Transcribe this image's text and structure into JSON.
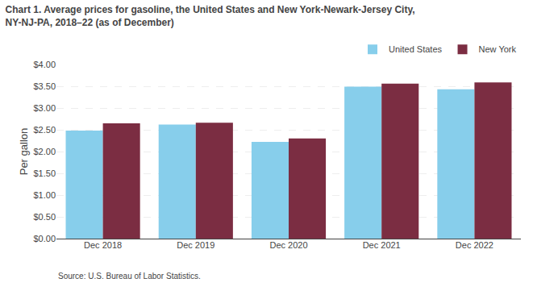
{
  "chart_data": {
    "type": "bar",
    "title": "Chart 1. Average prices for gasoline, the United States and New York-Newark-Jersey City,\nNY-NJ-PA, 2018–22 (as of December)",
    "ylabel": "Per gallon",
    "source": "Source: U.S. Bureau of Labor Statistics.",
    "categories": [
      "Dec 2018",
      "Dec 2019",
      "Dec 2020",
      "Dec 2021",
      "Dec 2022"
    ],
    "series": [
      {
        "name": "United States",
        "color": "#87CEEB",
        "values": [
          2.48,
          2.62,
          2.22,
          3.49,
          3.43
        ]
      },
      {
        "name": "New York",
        "color": "#7B2D42",
        "values": [
          2.65,
          2.66,
          2.3,
          3.56,
          3.59
        ]
      }
    ],
    "ylim": [
      0.0,
      4.0
    ],
    "yticks": [
      {
        "value": 0.0,
        "label": "$0.00"
      },
      {
        "value": 0.5,
        "label": "$0.50"
      },
      {
        "value": 1.0,
        "label": "$1.00"
      },
      {
        "value": 1.5,
        "label": "$1.50"
      },
      {
        "value": 2.0,
        "label": "$2.00"
      },
      {
        "value": 2.5,
        "label": "$2.50"
      },
      {
        "value": 3.0,
        "label": "$3.00"
      },
      {
        "value": 3.5,
        "label": "$3.50"
      },
      {
        "value": 4.0,
        "label": "$4.00"
      }
    ],
    "grid": true,
    "legend": "top"
  }
}
